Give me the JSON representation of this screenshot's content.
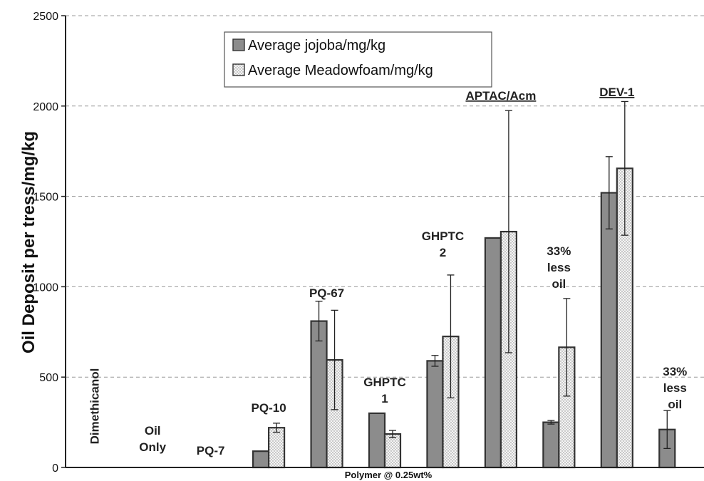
{
  "chart_data": {
    "type": "bar",
    "ylabel": "Oil Deposit per tress/mg/kg",
    "xlabel": "Polymer @ 0.25wt%",
    "ylim": [
      0,
      2500
    ],
    "yticks": [
      0,
      500,
      1000,
      1500,
      2000,
      2500
    ],
    "grid": "horizontal dashed",
    "legend_position": "top-left",
    "colors": {
      "jojoba": "#8c8c8c",
      "meadowfoam": "#f2f2f2",
      "outline": "#333333"
    },
    "categories": [
      "Dimethicanol",
      "Oil Only",
      "PQ-7",
      "PQ-10",
      "PQ-67",
      "GHPTC 1",
      "GHPTC 2",
      "APTAC/Acm",
      "APTAC/Acm 33% less oil",
      "DEV-1",
      "DEV-1 33% less oil"
    ],
    "series": [
      {
        "name": "Average jojoba/mg/kg",
        "values": [
          0,
          0,
          0,
          90,
          810,
          300,
          590,
          1270,
          250,
          1520,
          210
        ],
        "error": [
          0,
          0,
          0,
          0,
          110,
          0,
          30,
          0,
          10,
          200,
          105
        ]
      },
      {
        "name": "Average Meadowfoam/mg/kg",
        "values": [
          0,
          0,
          0,
          220,
          595,
          185,
          725,
          1305,
          665,
          1655,
          null
        ],
        "error": [
          0,
          0,
          0,
          25,
          275,
          20,
          340,
          670,
          270,
          370,
          null
        ]
      }
    ],
    "annotations": [
      {
        "text": "Dimethicanol",
        "category": 0,
        "rotated": true
      },
      {
        "text": "Oil",
        "category": 1,
        "line": 0
      },
      {
        "text": "Only",
        "category": 1,
        "line": 1
      },
      {
        "text": "PQ-7",
        "category": 2,
        "line": 0
      },
      {
        "text": "PQ-10",
        "category": 3,
        "line": 0
      },
      {
        "text": "PQ-67",
        "category": 4,
        "line": 0
      },
      {
        "text": "GHPTC",
        "category": 5,
        "line": 0
      },
      {
        "text": "1",
        "category": 5,
        "line": 1
      },
      {
        "text": "GHPTC",
        "category": 6,
        "line": 0
      },
      {
        "text": "2",
        "category": 6,
        "line": 1
      },
      {
        "text": "APTAC/Acm",
        "category": 7,
        "line": 0,
        "underline": true
      },
      {
        "text": "33%",
        "category": 8,
        "line": 0
      },
      {
        "text": "less",
        "category": 8,
        "line": 1
      },
      {
        "text": "oil",
        "category": 8,
        "line": 2
      },
      {
        "text": "DEV-1",
        "category": 9,
        "line": 0,
        "underline": true
      },
      {
        "text": "33%",
        "category": 10,
        "line": 0
      },
      {
        "text": "less",
        "category": 10,
        "line": 1
      },
      {
        "text": "oil",
        "category": 10,
        "line": 2
      }
    ]
  }
}
